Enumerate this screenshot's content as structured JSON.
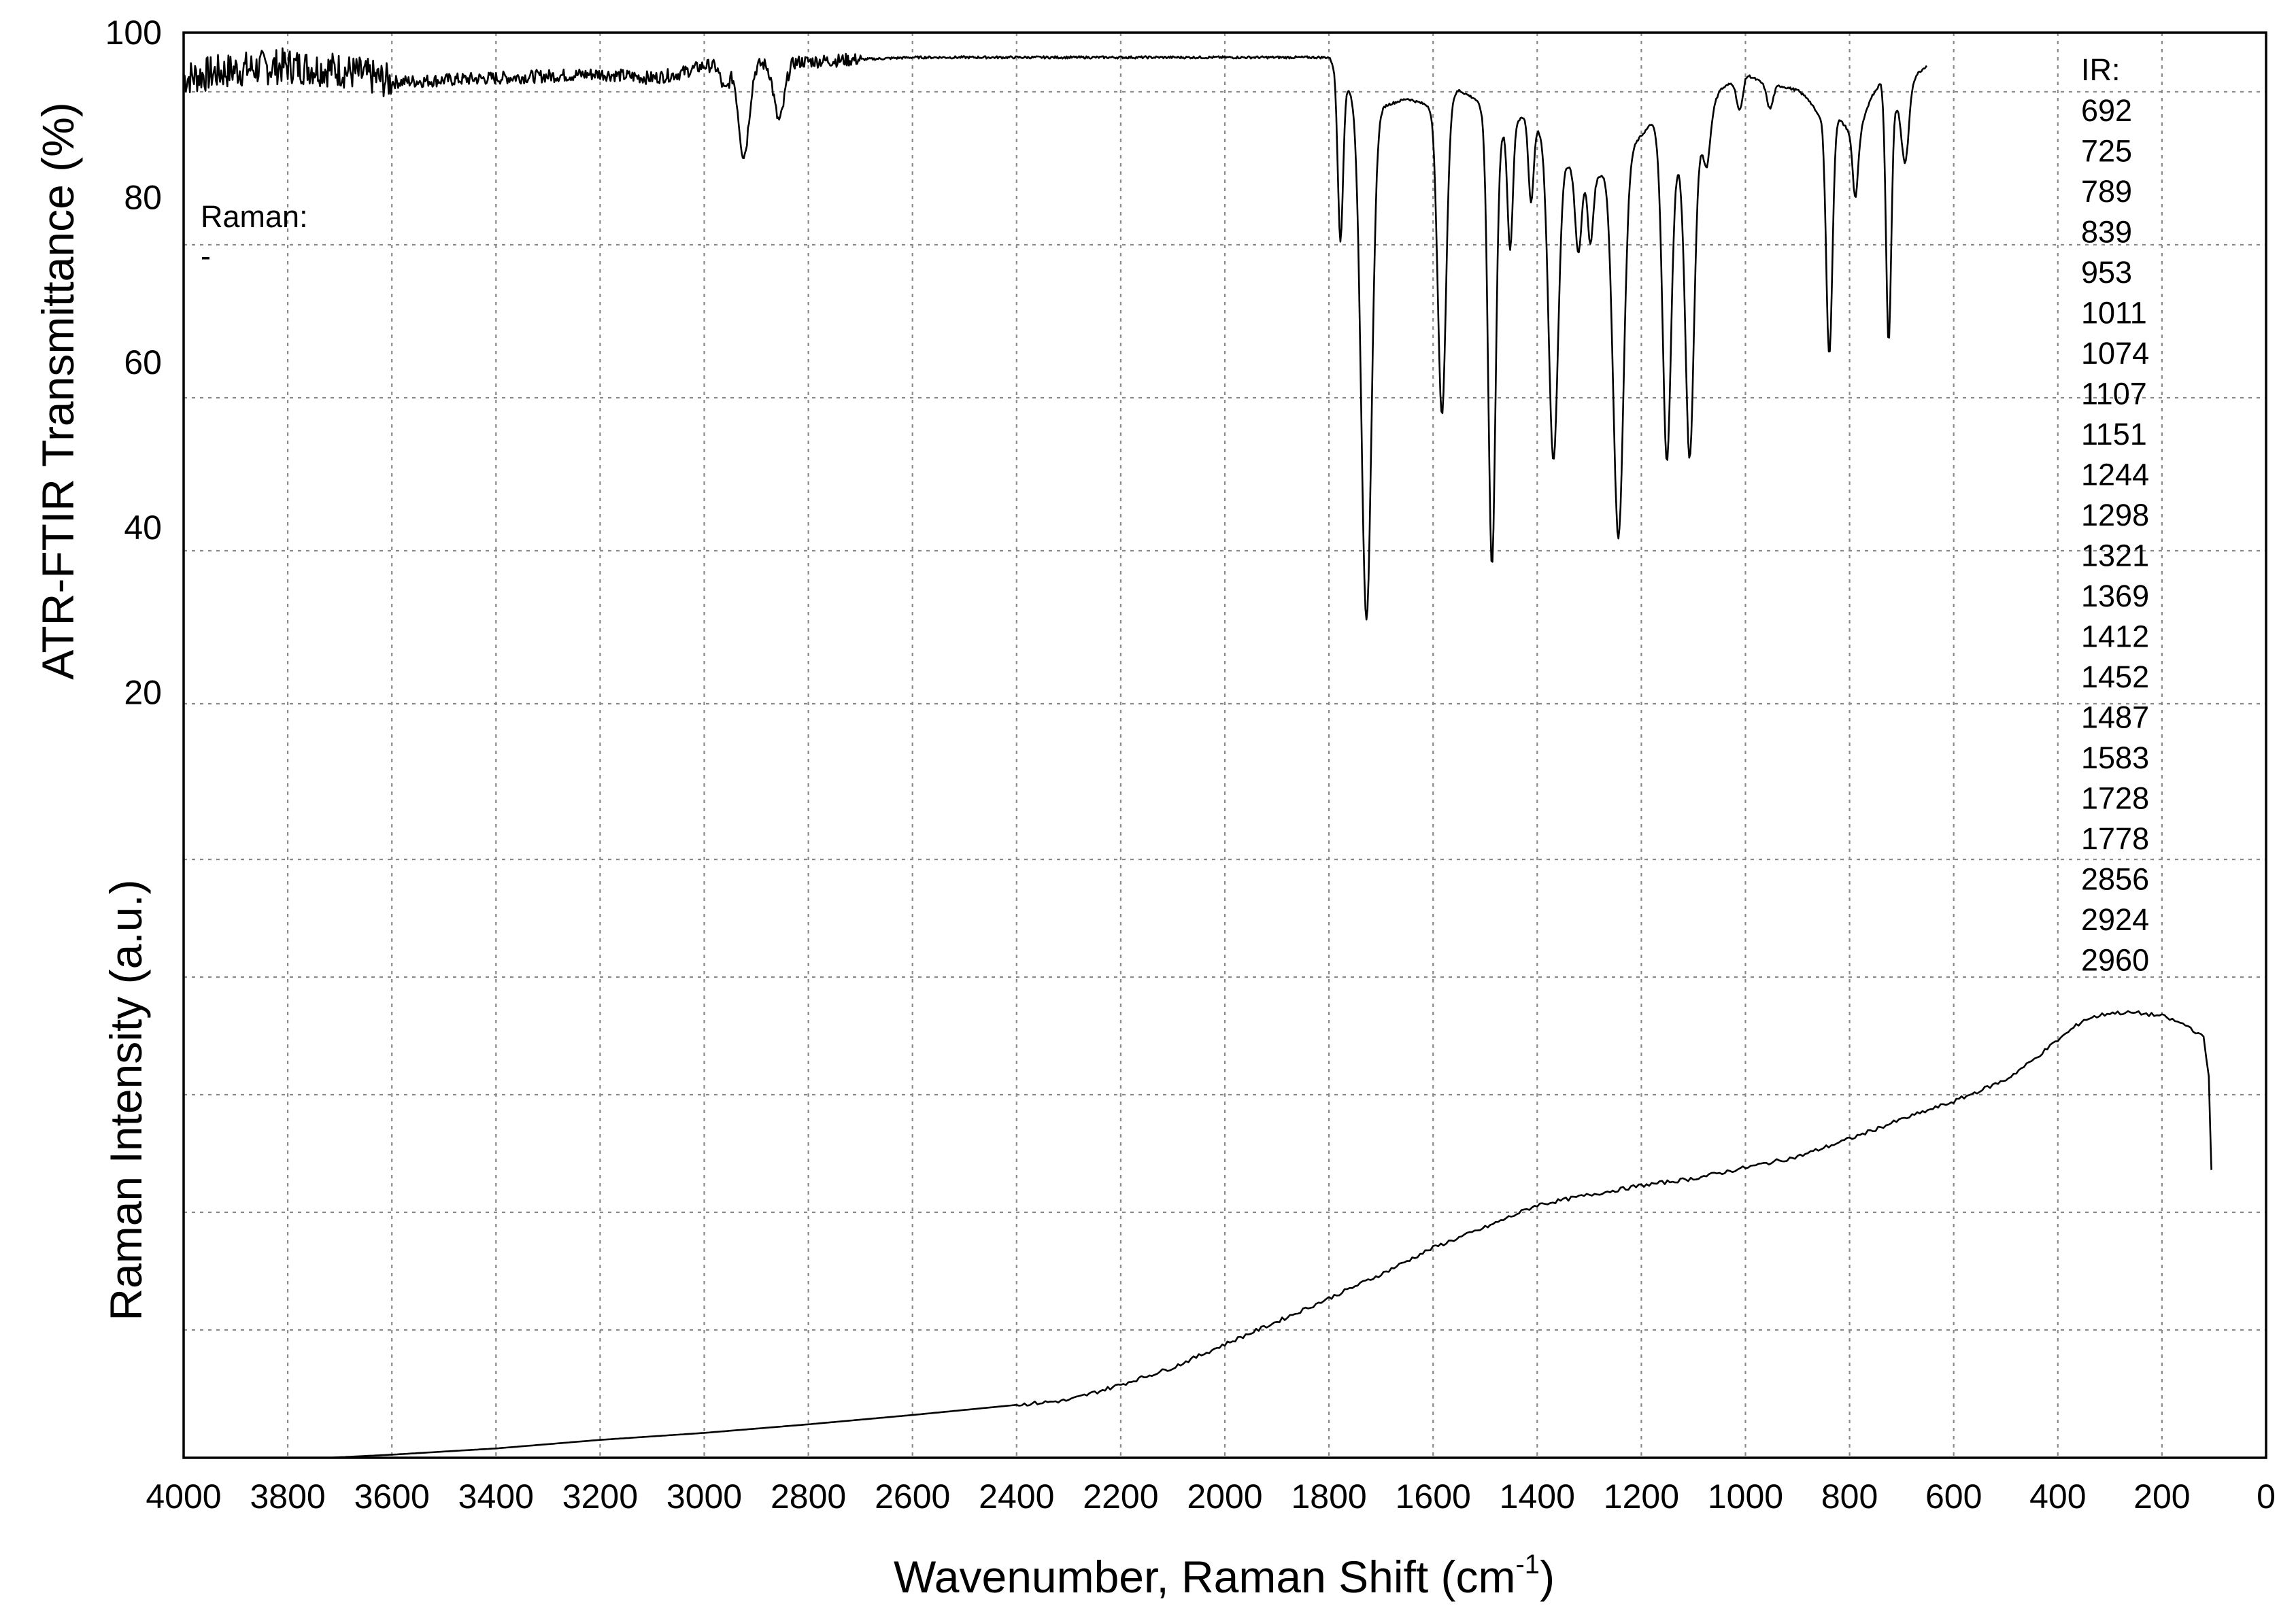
{
  "chart_data": {
    "type": "line",
    "xlabel_main": "Wavenumber, Raman Shift (cm",
    "xlabel_sup": "-1",
    "xlabel_close": ")",
    "ylabel_ir": "ATR-FTIR Transmittance (%)",
    "ylabel_raman": "Raman Intensity (a.u.)",
    "xlim": [
      4000,
      0
    ],
    "ylim_ir": [
      0,
      100
    ],
    "x_ticks": [
      "4000",
      "3800",
      "3600",
      "3400",
      "3200",
      "3000",
      "2800",
      "2600",
      "2400",
      "2200",
      "2000",
      "1800",
      "1600",
      "1400",
      "1200",
      "1000",
      "800",
      "600",
      "400",
      "200",
      "0"
    ],
    "y_ticks_ir": [
      "100",
      "80",
      "60",
      "40",
      "20"
    ],
    "grid": true,
    "ir_peaks_title": "IR:",
    "ir_peaks": [
      "692",
      "725",
      "789",
      "839",
      "953",
      "1011",
      "1074",
      "1107",
      "1151",
      "1244",
      "1298",
      "1321",
      "1369",
      "1412",
      "1452",
      "1487",
      "1583",
      "1728",
      "1778",
      "2856",
      "2924",
      "2960"
    ],
    "raman_peaks_title": "Raman:",
    "raman_peaks_value": "-",
    "series": [
      {
        "id": "ir",
        "baseline": [
          [
            4000,
            94.5
          ],
          [
            3900,
            95.5
          ],
          [
            3800,
            96
          ],
          [
            3700,
            95.5
          ],
          [
            3600,
            94
          ],
          [
            3400,
            94.5
          ],
          [
            3200,
            95
          ],
          [
            3100,
            94.5
          ],
          [
            3050,
            95
          ],
          [
            3000,
            96
          ],
          [
            2970,
            96
          ],
          [
            2800,
            96.5
          ],
          [
            2600,
            97
          ],
          [
            2400,
            97
          ],
          [
            2200,
            97
          ],
          [
            2000,
            97
          ],
          [
            1850,
            97
          ],
          [
            1800,
            97
          ],
          [
            1790,
            96
          ],
          [
            1760,
            93
          ],
          [
            1700,
            91
          ],
          [
            1650,
            92
          ],
          [
            1600,
            91
          ],
          [
            1550,
            93
          ],
          [
            1520,
            92
          ],
          [
            1470,
            88
          ],
          [
            1420,
            90
          ],
          [
            1380,
            87
          ],
          [
            1340,
            84
          ],
          [
            1290,
            82
          ],
          [
            1260,
            84
          ],
          [
            1220,
            86
          ],
          [
            1180,
            89
          ],
          [
            1150,
            86
          ],
          [
            1110,
            83
          ],
          [
            1090,
            86
          ],
          [
            1050,
            93
          ],
          [
            1000,
            95
          ],
          [
            970,
            94
          ],
          [
            930,
            93.5
          ],
          [
            900,
            93
          ],
          [
            880,
            92
          ],
          [
            860,
            90
          ],
          [
            840,
            91
          ],
          [
            800,
            88
          ],
          [
            780,
            88
          ],
          [
            760,
            92
          ],
          [
            740,
            94
          ],
          [
            720,
            92
          ],
          [
            700,
            90
          ],
          [
            690,
            93
          ],
          [
            670,
            95
          ],
          [
            652,
            96
          ]
        ],
        "dips": [
          [
            2960,
            3,
            8
          ],
          [
            2924,
            11,
            10
          ],
          [
            2856,
            7,
            10
          ],
          [
            1778,
            20,
            5
          ],
          [
            1728,
            63,
            10
          ],
          [
            1583,
            38,
            8
          ],
          [
            1487,
            54,
            7
          ],
          [
            1452,
            15,
            5
          ],
          [
            1412,
            10,
            5
          ],
          [
            1369,
            38,
            9
          ],
          [
            1321,
            10,
            6
          ],
          [
            1298,
            8,
            5
          ],
          [
            1244,
            46,
            10
          ],
          [
            1151,
            38,
            8
          ],
          [
            1107,
            35,
            8
          ],
          [
            1074,
            5,
            6
          ],
          [
            1011,
            4,
            6
          ],
          [
            953,
            3,
            6
          ],
          [
            839,
            30,
            6
          ],
          [
            789,
            8,
            5
          ],
          [
            725,
            30,
            5
          ],
          [
            692,
            8,
            6
          ]
        ],
        "noise_region": [
          4000,
          2700
        ]
      },
      {
        "id": "raman",
        "values": [
          [
            3720,
            0.0
          ],
          [
            3600,
            0.4
          ],
          [
            3400,
            1.2
          ],
          [
            3200,
            2.3
          ],
          [
            3000,
            3.2
          ],
          [
            2800,
            4.3
          ],
          [
            2600,
            5.5
          ],
          [
            2400,
            6.8
          ],
          [
            2300,
            7.4
          ],
          [
            2200,
            9.4
          ],
          [
            2100,
            11.6
          ],
          [
            2000,
            14.6
          ],
          [
            1900,
            17.5
          ],
          [
            1800,
            20.5
          ],
          [
            1700,
            23.6
          ],
          [
            1600,
            27.0
          ],
          [
            1500,
            29.6
          ],
          [
            1400,
            32.5
          ],
          [
            1300,
            33.8
          ],
          [
            1200,
            35.0
          ],
          [
            1100,
            35.9
          ],
          [
            1000,
            37.3
          ],
          [
            900,
            38.7
          ],
          [
            800,
            41.0
          ],
          [
            700,
            43.5
          ],
          [
            600,
            45.8
          ],
          [
            500,
            48.6
          ],
          [
            450,
            51.0
          ],
          [
            400,
            53.7
          ],
          [
            350,
            56.3
          ],
          [
            300,
            57.2
          ],
          [
            250,
            57.2
          ],
          [
            200,
            56.8
          ],
          [
            150,
            55.5
          ],
          [
            120,
            54.0
          ],
          [
            110,
            49.0
          ],
          [
            105,
            37.0
          ]
        ],
        "ylim": [
          0,
          100
        ]
      }
    ]
  }
}
